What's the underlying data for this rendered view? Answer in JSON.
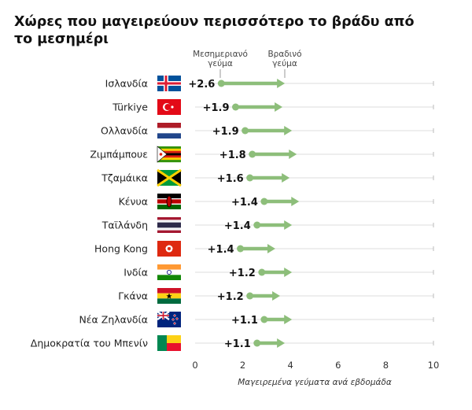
{
  "title": "Χώρες που μαγειρεύουν περισσότερο το βράδυ από το μεσημέρι",
  "chart_data": {
    "type": "dot-arrow",
    "xlabel": "Μαγειρεμένα γεύματα ανά εβδομάδα",
    "xlim": [
      0,
      10
    ],
    "xticks": [
      0,
      2,
      4,
      6,
      8,
      10
    ],
    "legend": {
      "start": "Μεσημεριανό γεύμα",
      "end": "Βραδινό γεύμα"
    },
    "colors": {
      "arrow": "#8dbe7a",
      "grid": "#dcdcdc"
    },
    "rows": [
      {
        "country": "Ισλανδία",
        "lunch": 1.1,
        "dinner": 3.7,
        "label": "+2.6",
        "flag": "iceland"
      },
      {
        "country": "Türkiye",
        "lunch": 1.7,
        "dinner": 3.6,
        "label": "+1.9",
        "flag": "turkey"
      },
      {
        "country": "Ολλανδία",
        "lunch": 2.1,
        "dinner": 4.0,
        "label": "+1.9",
        "flag": "netherlands"
      },
      {
        "country": "Ζιμπάμπουε",
        "lunch": 2.4,
        "dinner": 4.2,
        "label": "+1.8",
        "flag": "zimbabwe"
      },
      {
        "country": "Τζαμάικα",
        "lunch": 2.3,
        "dinner": 3.9,
        "label": "+1.6",
        "flag": "jamaica"
      },
      {
        "country": "Κένυα",
        "lunch": 2.9,
        "dinner": 4.3,
        "label": "+1.4",
        "flag": "kenya"
      },
      {
        "country": "Ταϊλάνδη",
        "lunch": 2.6,
        "dinner": 4.0,
        "label": "+1.4",
        "flag": "thailand"
      },
      {
        "country": "Hong Kong",
        "lunch": 1.9,
        "dinner": 3.3,
        "label": "+1.4",
        "flag": "hongkong"
      },
      {
        "country": "Ινδία",
        "lunch": 2.8,
        "dinner": 4.0,
        "label": "+1.2",
        "flag": "india"
      },
      {
        "country": "Γκάνα",
        "lunch": 2.3,
        "dinner": 3.5,
        "label": "+1.2",
        "flag": "ghana"
      },
      {
        "country": "Νέα Ζηλανδία",
        "lunch": 2.9,
        "dinner": 4.0,
        "label": "+1.1",
        "flag": "newzealand"
      },
      {
        "country": "Δημοκρατία του Μπενίν",
        "lunch": 2.6,
        "dinner": 3.7,
        "label": "+1.1",
        "flag": "benin"
      }
    ]
  }
}
